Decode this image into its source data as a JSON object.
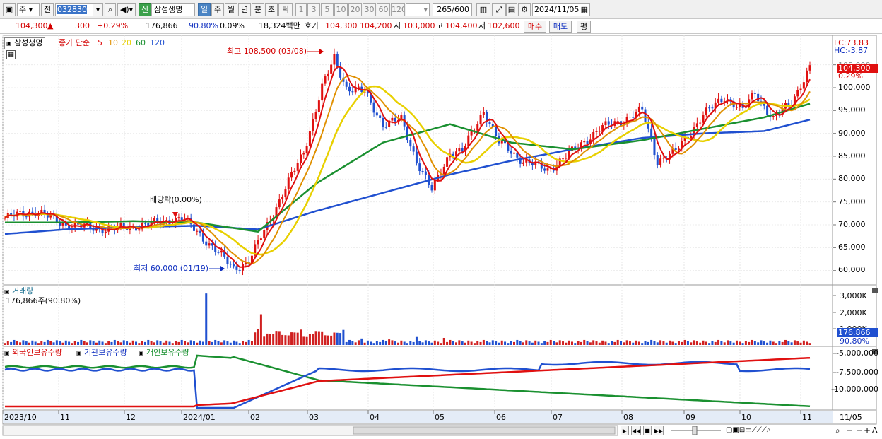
{
  "toolbar": {
    "market_a": "주",
    "market_b": "전",
    "code": "032830",
    "name_badge": "신",
    "stock_name": "삼성생명",
    "periods": [
      "일",
      "주",
      "월",
      "년",
      "분",
      "초",
      "틱"
    ],
    "active_period": "일",
    "nums": [
      "1",
      "3",
      "5",
      "10",
      "20",
      "30",
      "60",
      "120"
    ],
    "count": "265",
    "count_total": "/600",
    "date": "2024/11/05"
  },
  "quote": {
    "price": "104,300",
    "arrow": "▲",
    "change": "300",
    "change_pct": "+0.29%",
    "volume": "176,866",
    "vol_ratio": "90.80%",
    "turnover_pct": "0.09%",
    "amount": "18,324백만",
    "bid_label": "호가",
    "ask": "104,300",
    "bid": "104,200",
    "open_label": "시",
    "open": "103,000",
    "high_label": "고",
    "high": "104,400",
    "low_label": "저",
    "low": "102,600",
    "buy": "매수",
    "sell": "매도",
    "avg": "평"
  },
  "price_panel": {
    "name": "삼성생명",
    "ma_label": "종가 단순",
    "ma_periods": [
      "5",
      "10",
      "20",
      "60",
      "120"
    ],
    "ma_colors": [
      "#e01010",
      "#e09000",
      "#e8d000",
      "#1a9030",
      "#2050d0"
    ],
    "lc": "LC:73.83",
    "hc": "HC:-3.87",
    "current": "104,300",
    "current_pct": "0.29%",
    "annot_high": "최고 108,500 (03/08)",
    "annot_low": "최저 60,000 (01/19)",
    "annot_div": "배당락(0.00%)",
    "yticks": [
      "100,000",
      "95,000",
      "90,000",
      "85,000",
      "80,000",
      "75,000",
      "70,000",
      "65,000",
      "60,000"
    ],
    "ytick_partial": "105,000"
  },
  "volume_panel": {
    "title": "거래량",
    "info": "176,866주(90.80%)",
    "yticks": [
      "3,000K",
      "2,000K",
      "1,000K"
    ],
    "current": "176,866",
    "current_pct": "90.80%"
  },
  "holding_panel": {
    "legend": [
      "외국인보유수량",
      "기관보유수량",
      "개인보유수량"
    ],
    "colors": [
      "#e01010",
      "#2050d0",
      "#1a9030"
    ],
    "yticks": [
      "-5,000,000",
      "-7,500,000",
      "-10,000,000"
    ]
  },
  "xaxis": [
    "2023/10",
    "11",
    "12",
    "2024/01",
    "02",
    "03",
    "04",
    "05",
    "06",
    "07",
    "08",
    "09",
    "10",
    "11",
    "11/05"
  ],
  "chart_data": {
    "type": "line",
    "title": "삼성생명",
    "x": [
      "2023/10",
      "2023/11",
      "2023/12",
      "2024/01",
      "2024/02",
      "2024/03",
      "2024/04",
      "2024/05",
      "2024/06",
      "2024/07",
      "2024/08",
      "2024/09",
      "2024/10",
      "2024/11"
    ],
    "series": [
      {
        "name": "종가",
        "values": [
          71500,
          70000,
          70000,
          70500,
          76000,
          104000,
          93000,
          89000,
          84000,
          87000,
          94000,
          97000,
          96000,
          104000
        ]
      },
      {
        "name": "60",
        "values": [
          70500,
          70500,
          70800,
          70500,
          68500,
          79000,
          88000,
          92000,
          88000,
          86500,
          88500,
          91000,
          93500,
          96500
        ]
      },
      {
        "name": "120",
        "values": [
          68000,
          69000,
          69500,
          69800,
          69000,
          73000,
          77000,
          81000,
          84000,
          86500,
          89000,
          90000,
          90500,
          93000
        ]
      }
    ],
    "ylim": [
      58000,
      107000
    ],
    "annotations": [
      "최고 108,500 (03/08)",
      "최저 60,000 (01/19)",
      "배당락(0.00%)"
    ]
  }
}
